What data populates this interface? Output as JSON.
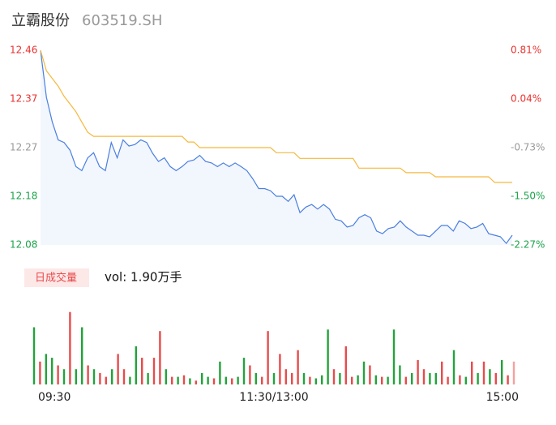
{
  "chart_data": [
    {
      "type": "line",
      "title": "立霸股份",
      "subtitle": "603519.SH",
      "x": [
        0,
        3,
        6,
        9,
        12,
        15,
        18,
        21,
        24,
        27,
        30,
        33,
        36,
        39,
        42,
        45,
        48,
        51,
        54,
        57,
        60,
        63,
        66,
        69,
        72,
        75,
        78,
        81,
        84,
        87,
        90,
        93,
        96,
        99,
        102,
        105,
        108,
        111,
        114,
        117,
        120,
        123,
        126,
        129,
        132,
        135,
        138,
        141,
        144,
        147,
        150,
        153,
        156,
        159,
        162,
        165,
        168,
        171,
        174,
        177,
        180,
        183,
        186,
        189,
        192,
        195,
        198,
        201,
        204,
        207,
        210,
        213,
        216,
        219,
        222,
        225,
        228,
        231,
        234,
        237,
        240
      ],
      "xlim": [
        0,
        240
      ],
      "ylim": [
        12.08,
        12.46
      ],
      "yticks": [
        12.46,
        {
          "value": 12.365,
          "label": "12.37"
        },
        12.27,
        {
          "value": 12.175,
          "label": "12.18"
        },
        12.08
      ],
      "y2lim": [
        -2.27,
        0.81
      ],
      "y2ticks": [
        {
          "value": 0.81,
          "label": "0.81%"
        },
        {
          "value": 0.04,
          "label": "0.04%"
        },
        {
          "value": -0.73,
          "label": "-0.73%"
        },
        {
          "value": -1.5,
          "label": "-1.50%"
        },
        {
          "value": -2.27,
          "label": "-2.27%"
        }
      ],
      "tick_colors": [
        "#e8312f",
        "#e8312f",
        "#999999",
        "#1aa34a",
        "#1aa34a"
      ],
      "grid": false,
      "series": [
        {
          "color": "#4a7fe0",
          "fill": "#f2f6fd",
          "values": [
            12.46,
            12.368,
            12.32,
            12.285,
            12.28,
            12.265,
            12.233,
            12.225,
            12.25,
            12.26,
            12.233,
            12.225,
            12.28,
            12.25,
            12.285,
            12.273,
            12.276,
            12.285,
            12.28,
            12.259,
            12.243,
            12.25,
            12.233,
            12.225,
            12.233,
            12.243,
            12.246,
            12.255,
            12.243,
            12.24,
            12.233,
            12.24,
            12.233,
            12.24,
            12.233,
            12.225,
            12.209,
            12.19,
            12.19,
            12.186,
            12.175,
            12.175,
            12.165,
            12.178,
            12.143,
            12.154,
            12.159,
            12.15,
            12.159,
            12.15,
            12.13,
            12.127,
            12.115,
            12.118,
            12.133,
            12.139,
            12.133,
            12.107,
            12.102,
            12.112,
            12.115,
            12.127,
            12.115,
            12.107,
            12.099,
            12.099,
            12.096,
            12.107,
            12.118,
            12.118,
            12.107,
            12.127,
            12.122,
            12.112,
            12.115,
            12.122,
            12.102,
            12.099,
            12.096,
            12.083,
            12.099
          ]
        },
        {
          "color": "#f5b83d",
          "values": [
            12.46,
            12.42,
            12.405,
            12.39,
            12.37,
            12.355,
            12.34,
            12.32,
            12.3,
            12.292,
            12.292,
            12.292,
            12.292,
            12.292,
            12.292,
            12.292,
            12.292,
            12.292,
            12.292,
            12.292,
            12.292,
            12.292,
            12.292,
            12.292,
            12.292,
            12.281,
            12.281,
            12.27,
            12.27,
            12.27,
            12.27,
            12.27,
            12.27,
            12.27,
            12.27,
            12.27,
            12.27,
            12.27,
            12.27,
            12.27,
            12.26,
            12.26,
            12.26,
            12.26,
            12.249,
            12.249,
            12.249,
            12.249,
            12.249,
            12.249,
            12.249,
            12.249,
            12.249,
            12.249,
            12.23,
            12.23,
            12.23,
            12.23,
            12.23,
            12.23,
            12.23,
            12.23,
            12.221,
            12.221,
            12.221,
            12.221,
            12.221,
            12.213,
            12.213,
            12.213,
            12.213,
            12.213,
            12.213,
            12.213,
            12.213,
            12.213,
            12.213,
            12.202,
            12.202,
            12.202,
            12.202
          ]
        }
      ]
    },
    {
      "type": "bar",
      "title": "日成交量",
      "subtitle": "vol: 1.90万手",
      "x": [
        0,
        3,
        6,
        9,
        12,
        15,
        18,
        21,
        24,
        27,
        30,
        33,
        36,
        39,
        42,
        45,
        48,
        51,
        54,
        57,
        60,
        63,
        66,
        69,
        72,
        75,
        78,
        81,
        84,
        87,
        90,
        93,
        96,
        99,
        102,
        105,
        108,
        111,
        114,
        117,
        120,
        123,
        126,
        129,
        132,
        135,
        138,
        141,
        144,
        147,
        150,
        153,
        156,
        159,
        162,
        165,
        168,
        171,
        174,
        177,
        180,
        183,
        186,
        189,
        192,
        195,
        198,
        201,
        204,
        207,
        210,
        213,
        216,
        219,
        222,
        225,
        228,
        231,
        234,
        237,
        240
      ],
      "xlim": [
        0,
        240
      ],
      "xticks": [
        {
          "value": 0,
          "label": "09:30"
        },
        {
          "value": 120,
          "label": "11:30/13:00"
        },
        {
          "value": 240,
          "label": "15:00"
        }
      ],
      "ylim": [
        0,
        100
      ],
      "values": [
        75,
        30,
        40,
        35,
        25,
        20,
        95,
        20,
        75,
        25,
        20,
        15,
        10,
        20,
        40,
        20,
        10,
        50,
        35,
        15,
        35,
        70,
        20,
        10,
        10,
        12,
        8,
        5,
        15,
        10,
        8,
        30,
        10,
        8,
        10,
        35,
        25,
        15,
        10,
        70,
        15,
        40,
        20,
        15,
        45,
        15,
        10,
        8,
        12,
        72,
        20,
        15,
        50,
        10,
        12,
        30,
        25,
        12,
        10,
        10,
        72,
        25,
        10,
        15,
        32,
        20,
        15,
        15,
        30,
        10,
        45,
        12,
        10,
        30,
        15,
        30,
        20,
        15,
        32,
        12,
        30
      ],
      "colors": [
        "#22a33a",
        "#e84b4b",
        "#22a33a",
        "#22a33a",
        "#e84b4b",
        "#22a33a",
        "#e84b4b",
        "#22a33a",
        "#22a33a",
        "#e84b4b",
        "#22a33a",
        "#e84b4b",
        "#e84b4b",
        "#22a33a",
        "#e84b4b",
        "#e84b4b",
        "#22a33a",
        "#22a33a",
        "#e84b4b",
        "#22a33a",
        "#e84b4b",
        "#e84b4b",
        "#22a33a",
        "#e84b4b",
        "#22a33a",
        "#e84b4b",
        "#22a33a",
        "#e84b4b",
        "#22a33a",
        "#22a33a",
        "#e84b4b",
        "#22a33a",
        "#22a33a",
        "#e84b4b",
        "#22a33a",
        "#22a33a",
        "#e84b4b",
        "#22a33a",
        "#e84b4b",
        "#e84b4b",
        "#22a33a",
        "#e84b4b",
        "#e84b4b",
        "#e84b4b",
        "#e84b4b",
        "#22a33a",
        "#e84b4b",
        "#22a33a",
        "#22a33a",
        "#22a33a",
        "#e84b4b",
        "#22a33a",
        "#e84b4b",
        "#e84b4b",
        "#22a33a",
        "#22a33a",
        "#e84b4b",
        "#22a33a",
        "#e84b4b",
        "#22a33a",
        "#22a33a",
        "#22a33a",
        "#e84b4b",
        "#22a33a",
        "#e84b4b",
        "#e84b4b",
        "#22a33a",
        "#22a33a",
        "#e84b4b",
        "#e84b4b",
        "#22a33a",
        "#e84b4b",
        "#22a33a",
        "#e84b4b",
        "#22a33a",
        "#e84b4b",
        "#22a33a",
        "#e84b4b",
        "#22a33a",
        "#e84b4b",
        "#f4a0a0"
      ]
    }
  ]
}
